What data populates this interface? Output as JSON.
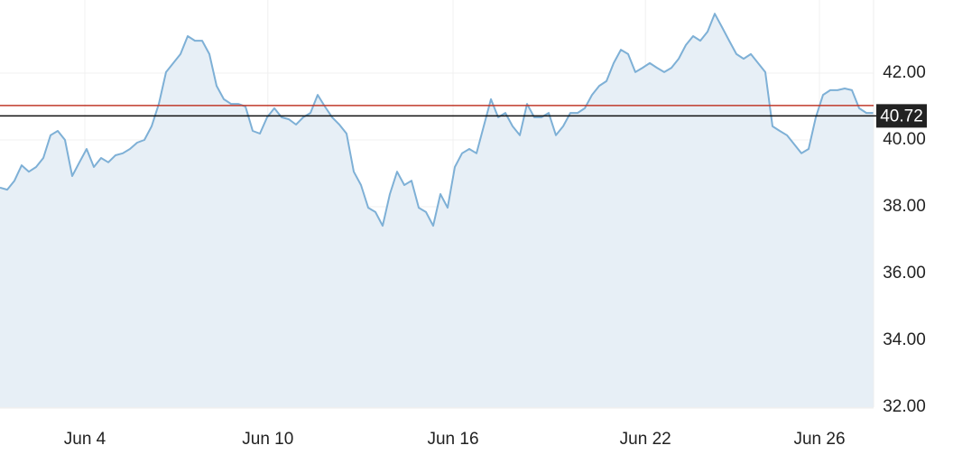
{
  "chart_data": {
    "type": "area",
    "values": [
      38.57,
      38.51,
      38.78,
      39.24,
      39.05,
      39.19,
      39.46,
      40.14,
      40.27,
      40.0,
      38.92,
      39.33,
      39.73,
      39.19,
      39.46,
      39.33,
      39.54,
      39.6,
      39.73,
      39.92,
      40.0,
      40.41,
      41.08,
      42.03,
      42.3,
      42.57,
      43.11,
      42.97,
      42.97,
      42.57,
      41.62,
      41.22,
      41.08,
      41.08,
      41.0,
      40.27,
      40.19,
      40.68,
      40.95,
      40.68,
      40.62,
      40.46,
      40.68,
      40.81,
      41.35,
      41.0,
      40.68,
      40.46,
      40.19,
      39.05,
      38.65,
      37.97,
      37.84,
      37.43,
      38.38,
      39.05,
      38.65,
      38.78,
      37.97,
      37.84,
      37.43,
      38.38,
      37.97,
      39.19,
      39.6,
      39.73,
      39.6,
      40.41,
      41.22,
      40.68,
      40.81,
      40.41,
      40.14,
      41.08,
      40.68,
      40.68,
      40.81,
      40.14,
      40.41,
      40.81,
      40.81,
      40.95,
      41.35,
      41.62,
      41.76,
      42.3,
      42.7,
      42.57,
      42.03,
      42.16,
      42.3,
      42.16,
      42.03,
      42.16,
      42.43,
      42.84,
      43.11,
      42.97,
      43.24,
      43.78,
      43.38,
      42.97,
      42.57,
      42.43,
      42.57,
      42.3,
      42.03,
      40.41,
      40.27,
      40.14,
      39.87,
      39.6,
      39.73,
      40.68,
      41.35,
      41.49,
      41.49,
      41.54,
      41.49,
      40.95,
      40.81,
      40.81
    ],
    "color": "#7eb0d6",
    "fill_color": "#e7eff6",
    "xlim": [
      0,
      121
    ],
    "xticks": [
      {
        "value": 11.75,
        "label": "Jun 4"
      },
      {
        "value": 37.1,
        "label": "Jun 10"
      },
      {
        "value": 62.75,
        "label": "Jun 16"
      },
      {
        "value": 89.4,
        "label": "Jun 22"
      },
      {
        "value": 113.5,
        "label": "Jun 26"
      }
    ],
    "ylim": [
      32,
      44.19
    ],
    "yticks": [
      {
        "value": 32,
        "label": "32.00"
      },
      {
        "value": 34,
        "label": "34.00"
      },
      {
        "value": 36,
        "label": "36.00"
      },
      {
        "value": 38,
        "label": "38.00"
      },
      {
        "value": 40,
        "label": "40.00"
      },
      {
        "value": 42,
        "label": "42.00"
      }
    ],
    "grid": true,
    "reference_line": 41.03,
    "reference_color": "#c0392b",
    "last_price": 40.72
  }
}
